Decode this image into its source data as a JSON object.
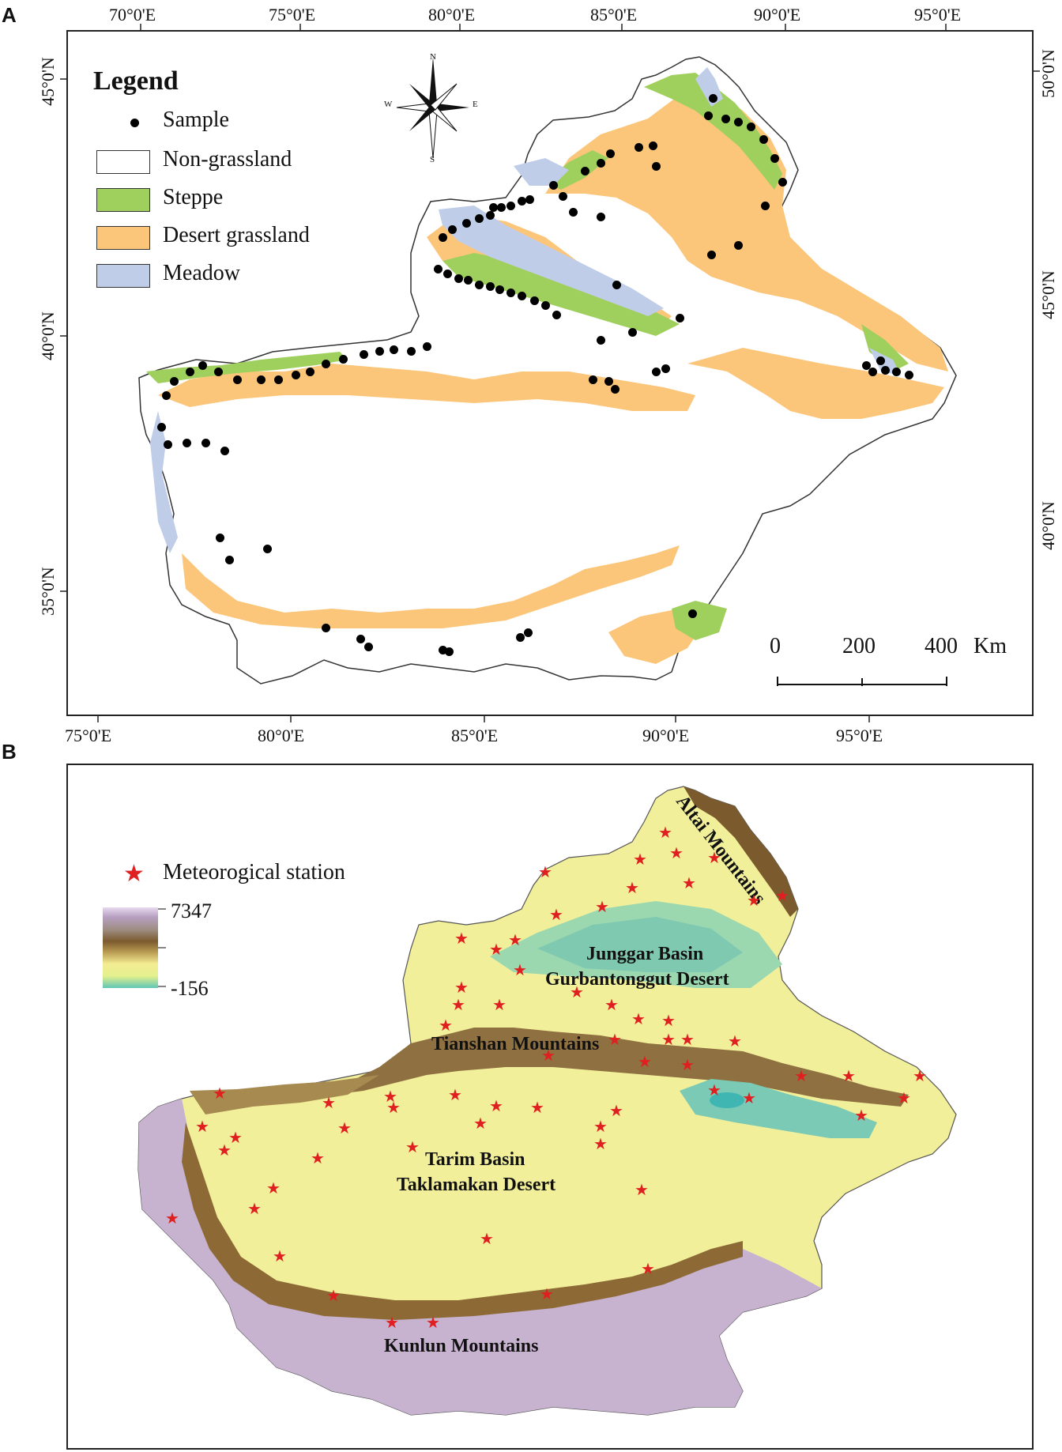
{
  "panels": {
    "a": {
      "letter": "A",
      "top_lon_labels": [
        "70°0'E",
        "75°0'E",
        "80°0'E",
        "85°0'E",
        "90°0'E",
        "95°0'E"
      ],
      "bottom_lon_labels": [
        "75°0'E",
        "80°0'E",
        "85°0'E",
        "90°0'E",
        "95°0'E"
      ],
      "left_lat_labels": [
        "45°0'N",
        "40°0'N",
        "35°0'N"
      ],
      "right_lat_labels": [
        "50°0'N",
        "45°0'N",
        "40°0'N"
      ],
      "legend": {
        "title": "Legend",
        "items": [
          {
            "label": "Sample",
            "symbol": "dot",
            "color": "#000000"
          },
          {
            "label": "Non-grassland",
            "symbol": "box",
            "color": "#ffffff"
          },
          {
            "label": "Steppe",
            "symbol": "box",
            "color": "#9fcf5c"
          },
          {
            "label": "Desert grassland",
            "symbol": "box",
            "color": "#fcc67a"
          },
          {
            "label": "Meadow",
            "symbol": "box",
            "color": "#bfcde8"
          }
        ]
      },
      "compass": {
        "n": "N",
        "s": "S",
        "e": "E",
        "w": "W"
      },
      "scale_bar": {
        "labels": [
          "0",
          "200",
          "400"
        ],
        "unit": "Km"
      }
    },
    "b": {
      "letter": "B",
      "legend": {
        "station_label": "Meteorogical station",
        "station_color": "#e02020",
        "elev_max": "7347",
        "elev_min": "-156"
      },
      "regions": {
        "altai": "Altai Mountains",
        "junggar1": "Junggar Basin",
        "junggar2": "Gurbantonggut Desert",
        "tianshan": "Tianshan Mountains",
        "tarim1": "Tarim Basin",
        "tarim2": "Taklamakan Desert",
        "kunlun": "Kunlun Mountains"
      }
    }
  }
}
